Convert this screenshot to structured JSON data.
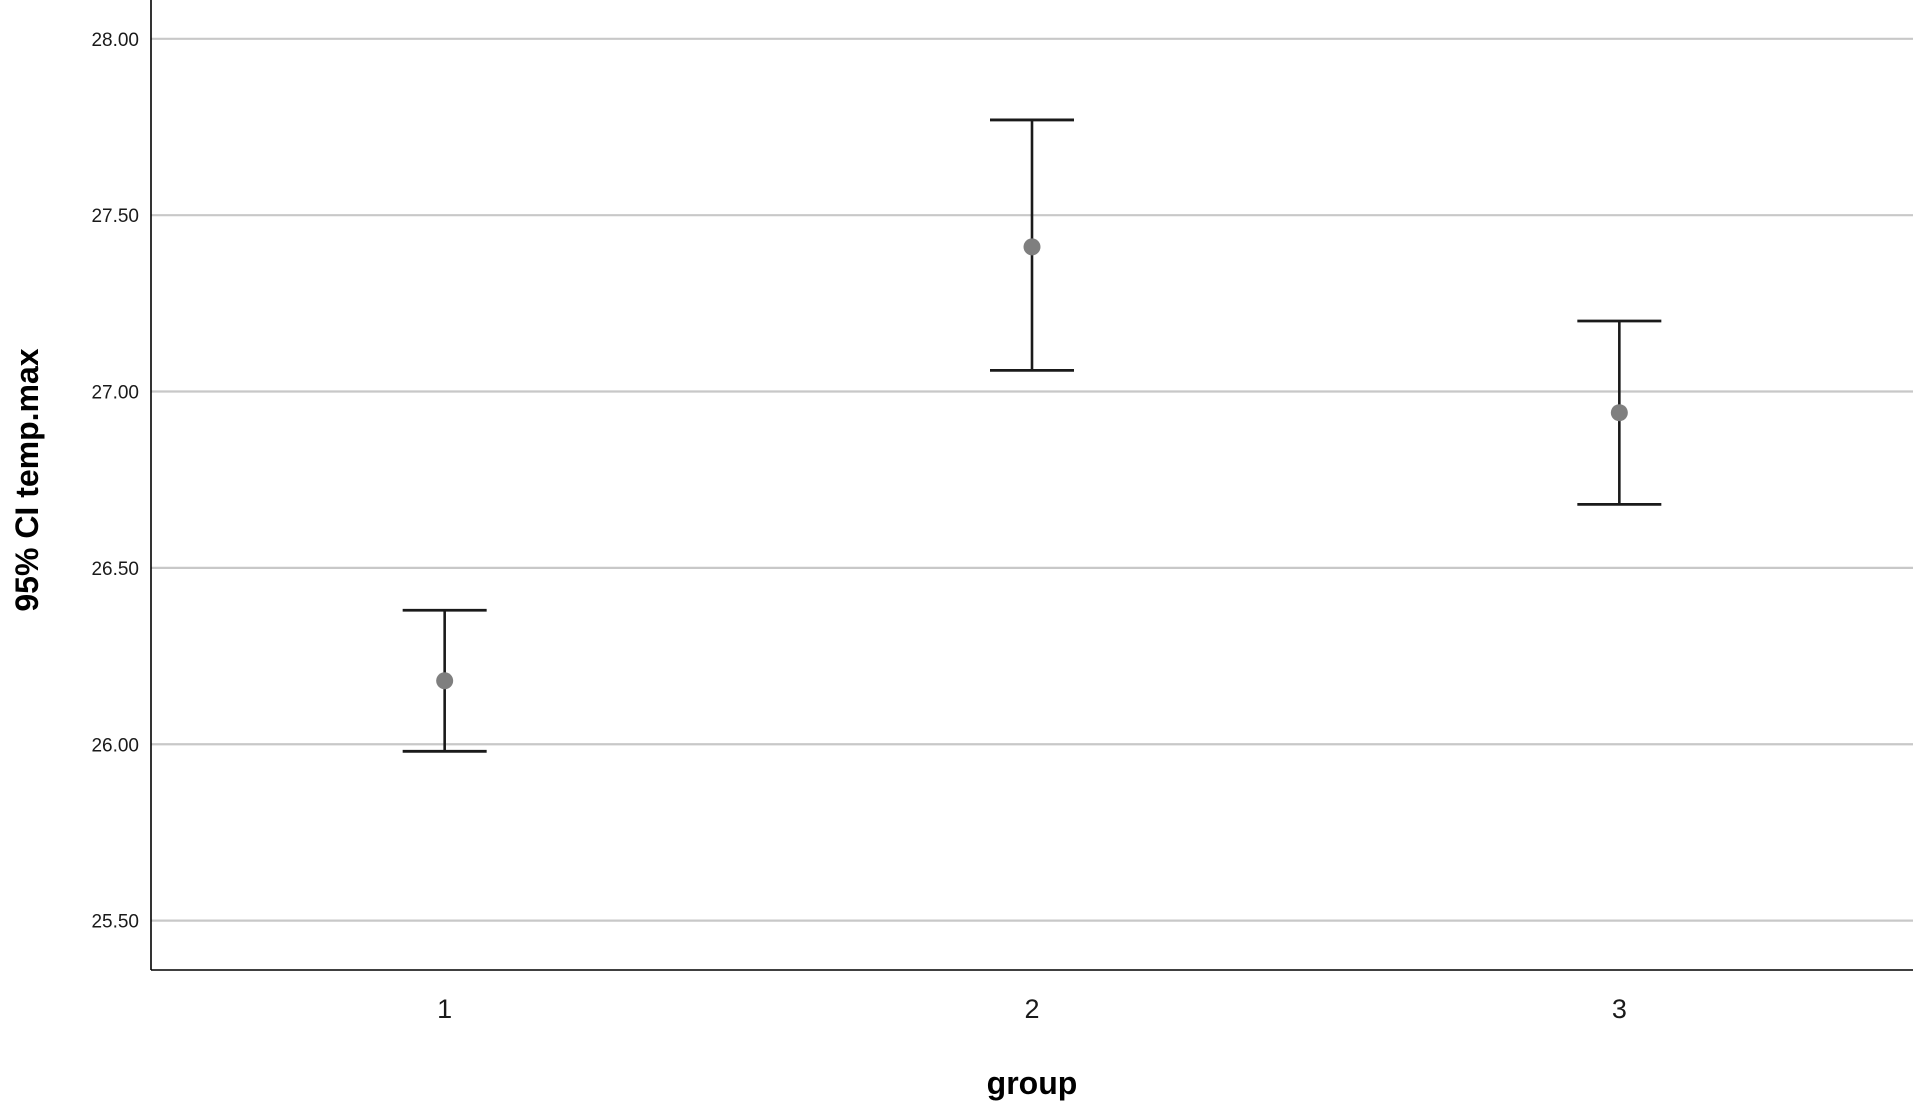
{
  "chart_data": {
    "type": "errorbar",
    "title": "",
    "xlabel": "group",
    "ylabel": "95% CI temp.max",
    "categories": [
      "1",
      "2",
      "3"
    ],
    "series": [
      {
        "mean": [
          26.18,
          27.41,
          26.94
        ],
        "ci_lower": [
          25.98,
          27.06,
          26.68
        ],
        "ci_upper": [
          26.38,
          27.77,
          27.2
        ]
      }
    ],
    "ylim": [
      25.36,
      28.11
    ],
    "yticks": [
      25.5,
      26.0,
      26.5,
      27.0,
      27.5,
      28.0
    ],
    "ytick_labels": [
      "25.50",
      "26.00",
      "26.50",
      "27.00",
      "27.50",
      "28.00"
    ],
    "grid": true,
    "legend": "none"
  },
  "colors": {
    "grid": "#c8c8c8",
    "axis": "#000000",
    "errorbar": "#1a1a1a",
    "marker": "#7f7f7f"
  }
}
